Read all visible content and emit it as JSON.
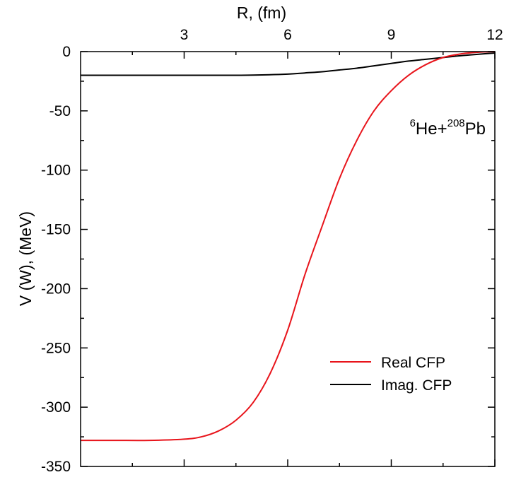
{
  "chart_data": {
    "type": "line",
    "title": "",
    "xlabel": "R, (fm)",
    "ylabel": "V (W), (MeV)",
    "xlim": [
      0,
      12
    ],
    "ylim": [
      -350,
      0
    ],
    "x_ticks": [
      3,
      6,
      9,
      12
    ],
    "x_tick_labels": [
      "3",
      "6",
      "9",
      "12"
    ],
    "x_minor_ticks": [
      1.5,
      4.5,
      7.5,
      10.5
    ],
    "y_ticks": [
      0,
      -50,
      -100,
      -150,
      -200,
      -250,
      -300,
      -350
    ],
    "y_tick_labels": [
      "0",
      "-50",
      "-100",
      "-150",
      "-200",
      "-250",
      "-300",
      "-350"
    ],
    "y_minor_ticks": [
      -25,
      -75,
      -125,
      -175,
      -225,
      -275,
      -325
    ],
    "x_axis_position": "top",
    "grid": false,
    "legend_position": "bottom-right",
    "annotation": {
      "mass_a": "6",
      "element_a": "He",
      "plus": "+",
      "mass_b": "208",
      "element_b": "Pb"
    },
    "series": [
      {
        "name": "Real CFP",
        "color": "#e8141b",
        "x": [
          0,
          1,
          2,
          3,
          3.5,
          4,
          4.5,
          5,
          5.5,
          6,
          6.5,
          7,
          7.5,
          8,
          8.5,
          9,
          9.5,
          10,
          10.5,
          11,
          11.5,
          12
        ],
        "y": [
          -328,
          -328,
          -328,
          -327,
          -325,
          -320,
          -311,
          -296,
          -271,
          -235,
          -188,
          -147,
          -107,
          -75,
          -50,
          -33,
          -20,
          -11,
          -5,
          -2,
          -0.6,
          0
        ]
      },
      {
        "name": "Imag. CFP",
        "color": "#000000",
        "x": [
          0,
          1,
          2,
          3,
          4,
          5,
          6,
          6.5,
          7,
          7.5,
          8,
          8.5,
          9,
          9.5,
          10,
          10.5,
          11,
          11.5,
          12
        ],
        "y": [
          -20,
          -20,
          -20,
          -20,
          -20,
          -19.8,
          -19,
          -18,
          -17,
          -15.5,
          -14,
          -12,
          -10,
          -8,
          -6.5,
          -5,
          -3.5,
          -2.3,
          -1.2
        ]
      }
    ]
  }
}
